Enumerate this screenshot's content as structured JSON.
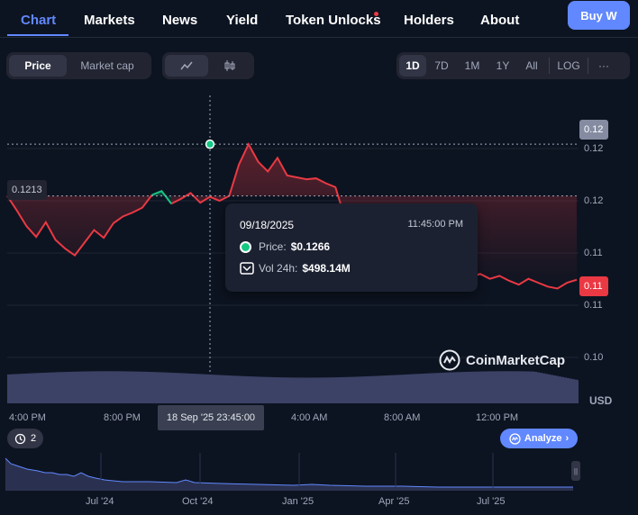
{
  "nav": {
    "tabs": [
      {
        "label": "Chart"
      },
      {
        "label": "Markets"
      },
      {
        "label": "News"
      },
      {
        "label": "Yield"
      },
      {
        "label": "Token Unlocks"
      },
      {
        "label": "Holders"
      },
      {
        "label": "About"
      }
    ],
    "buy_label": "Buy W"
  },
  "toolbar": {
    "metric_tabs": [
      "Price",
      "Market cap"
    ],
    "ranges": [
      "1D",
      "7D",
      "1M",
      "1Y",
      "All"
    ],
    "log_label": "LOG",
    "more_label": "···"
  },
  "chart": {
    "open_tag": "0.1213",
    "top_tag": "0.12",
    "current_tag": "0.11",
    "y_ticks": [
      "0.12",
      "0.12",
      "0.11",
      "0.11",
      "0.10"
    ],
    "currency": "USD",
    "x_ticks": [
      "4:00 PM",
      "8:00 PM",
      "4:00 AM",
      "8:00 AM",
      "12:00 PM"
    ],
    "cursor_time": "18 Sep '25 23:45:00",
    "watermark": "CoinMarketCap",
    "colors": {
      "up": "#16c784",
      "down": "#ea3943",
      "accent": "#6188ff"
    }
  },
  "tooltip": {
    "date": "09/18/2025",
    "time": "11:45:00 PM",
    "price_label": "Price:",
    "price_value": "$0.1266",
    "vol_label": "Vol 24h:",
    "vol_value": "$498.14M"
  },
  "bottom": {
    "history_count": "2",
    "analyze_label": "Analyze",
    "mini_labels": [
      "Jul '24",
      "Oct '24",
      "Jan '25",
      "Apr '25",
      "Jul '25"
    ]
  },
  "chart_data": {
    "type": "line",
    "series": [
      {
        "values": [
          0.1213,
          0.1198,
          0.1182,
          0.1171,
          0.1186,
          0.1168,
          0.1159,
          0.1152,
          0.1165,
          0.1178,
          0.117,
          0.1185,
          0.1192,
          0.1196,
          0.1201,
          0.1214,
          0.1218,
          0.1205,
          0.121,
          0.1216,
          0.1206,
          0.1212,
          0.1208,
          0.1213,
          0.1245,
          0.1266,
          0.1248,
          0.1238,
          0.1252,
          0.1234,
          0.1232,
          0.123,
          0.1231,
          0.1226,
          0.1222,
          0.119,
          0.1182,
          0.1176,
          0.1168,
          0.1162,
          0.1158,
          0.116,
          0.1155,
          0.1152,
          0.1158,
          0.1154,
          0.1149,
          0.1135,
          0.113,
          0.1133,
          0.1128,
          0.1131,
          0.1126,
          0.1122,
          0.1128,
          0.1124,
          0.112,
          0.1118,
          0.1124,
          0.1127
        ]
      }
    ],
    "volume_level": 0.85
  }
}
